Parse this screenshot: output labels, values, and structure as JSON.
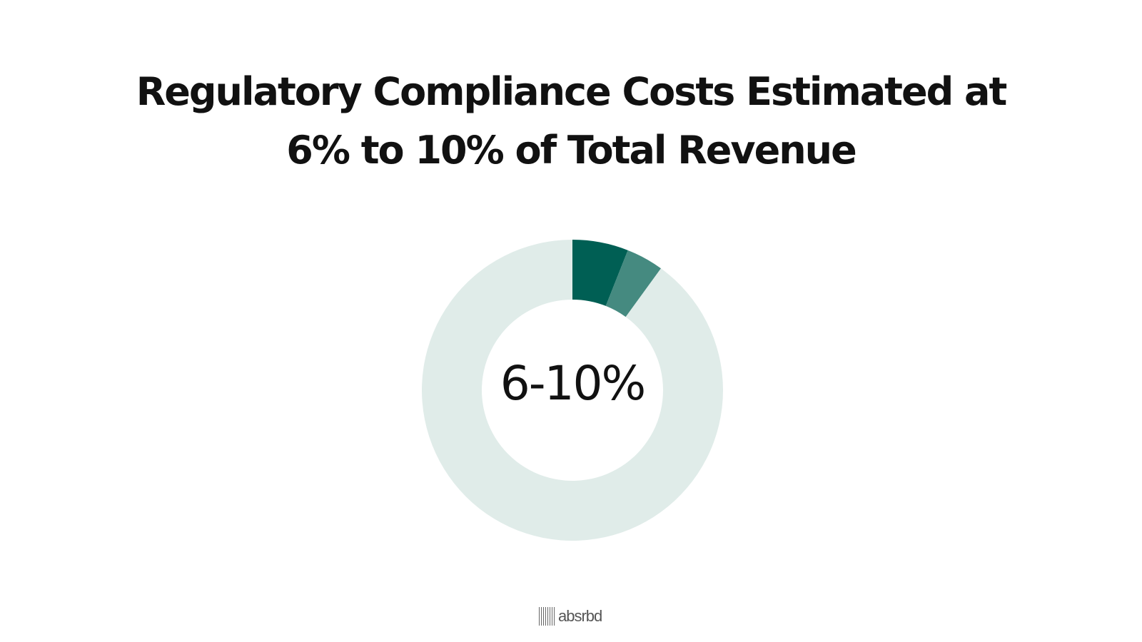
{
  "title": {
    "line1": "Regulatory Compliance Costs Estimated at",
    "line2": "6% to 10% of Total Revenue"
  },
  "logo": {
    "text": "absrbd"
  },
  "chart_data": {
    "type": "pie",
    "title": "Regulatory Compliance Costs Estimated at 6% to 10% of Total Revenue",
    "center_label": "6-10%",
    "slices": [
      {
        "value": 6,
        "color": "#005f54"
      },
      {
        "value": 4,
        "color": "#458a80"
      },
      {
        "value": 90,
        "color": "#e0ece9"
      }
    ]
  }
}
